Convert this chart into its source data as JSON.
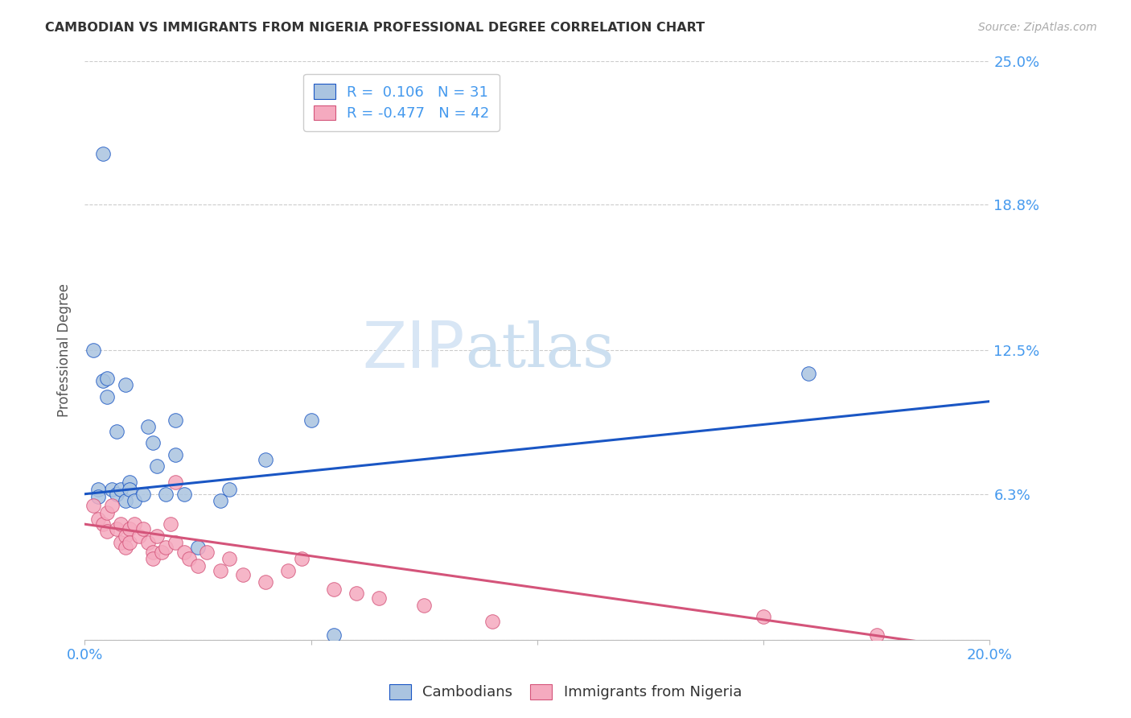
{
  "title": "CAMBODIAN VS IMMIGRANTS FROM NIGERIA PROFESSIONAL DEGREE CORRELATION CHART",
  "source": "Source: ZipAtlas.com",
  "ylabel": "Professional Degree",
  "xlim": [
    0.0,
    0.2
  ],
  "ylim": [
    0.0,
    0.25
  ],
  "yticks": [
    0.0,
    0.063,
    0.125,
    0.188,
    0.25
  ],
  "ytick_labels": [
    "",
    "6.3%",
    "12.5%",
    "18.8%",
    "25.0%"
  ],
  "xticks": [
    0.0,
    0.05,
    0.1,
    0.15,
    0.2
  ],
  "xtick_labels": [
    "0.0%",
    "",
    "",
    "",
    "20.0%"
  ],
  "legend_r1": "R =  0.106   N = 31",
  "legend_r2": "R = -0.477   N = 42",
  "color_cambodian": "#aac4e0",
  "color_nigeria": "#f5aabf",
  "line_color_cambodian": "#1a56c4",
  "line_color_nigeria": "#d4547a",
  "blue_line_x0": 0.0,
  "blue_line_y0": 0.063,
  "blue_line_x1": 0.2,
  "blue_line_y1": 0.103,
  "pink_line_x0": 0.0,
  "pink_line_y0": 0.05,
  "pink_line_x1": 0.2,
  "pink_line_y1": -0.005,
  "cambodian_x": [
    0.002,
    0.004,
    0.004,
    0.005,
    0.005,
    0.006,
    0.007,
    0.007,
    0.008,
    0.009,
    0.009,
    0.01,
    0.01,
    0.011,
    0.013,
    0.014,
    0.015,
    0.016,
    0.018,
    0.02,
    0.02,
    0.022,
    0.025,
    0.03,
    0.032,
    0.05,
    0.055,
    0.003,
    0.003,
    0.16,
    0.04
  ],
  "cambodian_y": [
    0.125,
    0.21,
    0.112,
    0.113,
    0.105,
    0.065,
    0.063,
    0.09,
    0.065,
    0.11,
    0.06,
    0.068,
    0.065,
    0.06,
    0.063,
    0.092,
    0.085,
    0.075,
    0.063,
    0.08,
    0.095,
    0.063,
    0.04,
    0.06,
    0.065,
    0.095,
    0.002,
    0.065,
    0.062,
    0.115,
    0.078
  ],
  "nigeria_x": [
    0.002,
    0.003,
    0.004,
    0.005,
    0.005,
    0.006,
    0.007,
    0.008,
    0.008,
    0.009,
    0.009,
    0.01,
    0.01,
    0.011,
    0.012,
    0.013,
    0.014,
    0.015,
    0.015,
    0.016,
    0.017,
    0.018,
    0.019,
    0.02,
    0.02,
    0.022,
    0.023,
    0.025,
    0.027,
    0.03,
    0.032,
    0.035,
    0.04,
    0.045,
    0.048,
    0.055,
    0.06,
    0.065,
    0.075,
    0.09,
    0.15,
    0.175
  ],
  "nigeria_y": [
    0.058,
    0.052,
    0.05,
    0.055,
    0.047,
    0.058,
    0.048,
    0.05,
    0.042,
    0.045,
    0.04,
    0.048,
    0.042,
    0.05,
    0.045,
    0.048,
    0.042,
    0.038,
    0.035,
    0.045,
    0.038,
    0.04,
    0.05,
    0.068,
    0.042,
    0.038,
    0.035,
    0.032,
    0.038,
    0.03,
    0.035,
    0.028,
    0.025,
    0.03,
    0.035,
    0.022,
    0.02,
    0.018,
    0.015,
    0.008,
    0.01,
    0.002
  ]
}
